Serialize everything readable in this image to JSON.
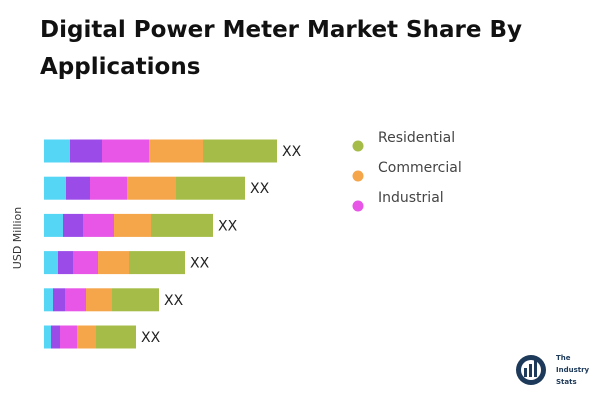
{
  "chart_data": {
    "type": "stacked-bar-horizontal",
    "title": "Digital Power Meter Market Share By Applications",
    "y_label": "USD Million",
    "categories": [
      null,
      null,
      null,
      null,
      null,
      null
    ],
    "series": [
      {
        "color": "#56d6f5",
        "values": [
          26,
          22,
          19,
          14,
          9,
          7
        ]
      },
      {
        "color": "#9b4be8",
        "values": [
          32,
          24,
          20,
          15,
          12,
          9
        ]
      },
      {
        "name": "Industrial",
        "color": "#e756e6",
        "values": [
          47,
          37,
          31,
          25,
          21,
          17
        ]
      },
      {
        "name": "Commercial",
        "color": "#f5a54a",
        "values": [
          54,
          49,
          37,
          31,
          26,
          19
        ]
      },
      {
        "name": "Residential",
        "color": "#a5bd48",
        "values": [
          74,
          69,
          62,
          56,
          47,
          40
        ]
      }
    ],
    "bar_labels": [
      "XX",
      "XX",
      "XX",
      "XX",
      "XX",
      "XX"
    ],
    "logo": [
      "The",
      "Industry",
      "Stats"
    ]
  }
}
